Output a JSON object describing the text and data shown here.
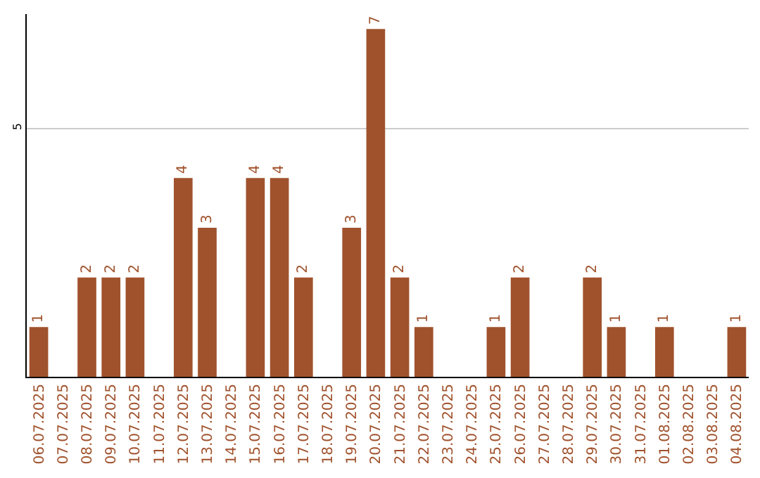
{
  "chart_data": {
    "type": "bar",
    "categories": [
      "06.07.2025",
      "07.07.2025",
      "08.07.2025",
      "09.07.2025",
      "10.07.2025",
      "11.07.2025",
      "12.07.2025",
      "13.07.2025",
      "14.07.2025",
      "15.07.2025",
      "16.07.2025",
      "17.07.2025",
      "18.07.2025",
      "19.07.2025",
      "20.07.2025",
      "21.07.2025",
      "22.07.2025",
      "23.07.2025",
      "24.07.2025",
      "25.07.2025",
      "26.07.2025",
      "27.07.2025",
      "28.07.2025",
      "29.07.2025",
      "30.07.2025",
      "31.07.2025",
      "01.08.2025",
      "02.08.2025",
      "03.08.2025",
      "04.08.2025"
    ],
    "values": [
      1,
      0,
      2,
      2,
      2,
      0,
      4,
      3,
      0,
      4,
      4,
      2,
      0,
      3,
      7,
      2,
      1,
      0,
      0,
      1,
      2,
      0,
      0,
      2,
      1,
      0,
      1,
      0,
      0,
      1
    ],
    "value_labels": [
      "1",
      null,
      "2",
      "2",
      "2",
      null,
      "4",
      "3",
      null,
      "4",
      "4",
      "2",
      null,
      "3",
      "7",
      "2",
      "1",
      null,
      null,
      "1",
      "2",
      null,
      null,
      "2",
      "1",
      null,
      "1",
      null,
      null,
      "1"
    ],
    "color": "#a0522d",
    "ylim": [
      0,
      7.3
    ],
    "yticks": [
      5
    ],
    "grid": "y",
    "legend": false
  }
}
